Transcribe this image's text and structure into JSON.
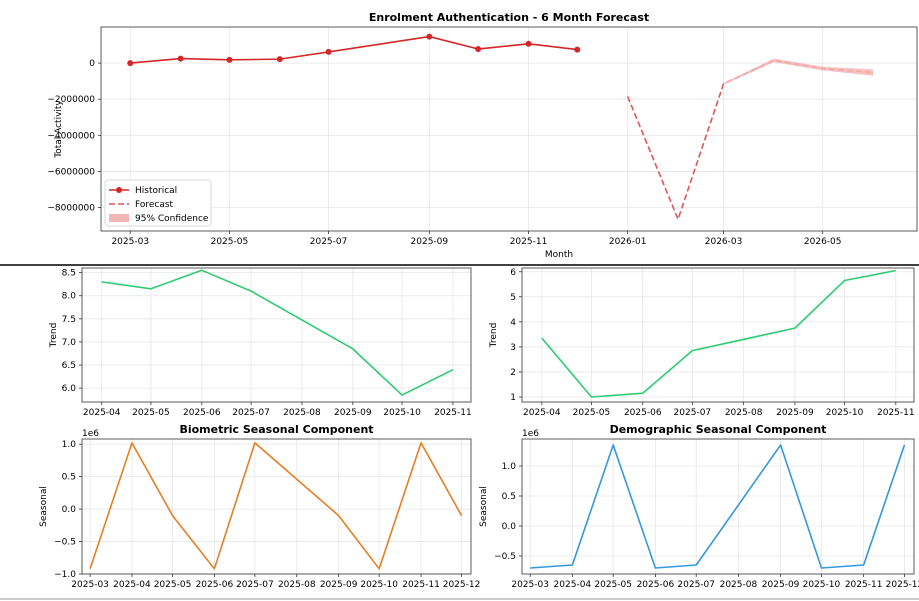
{
  "chart_data": [
    {
      "id": "forecast",
      "type": "line",
      "title": "Enrolment Authentication - 6 Month Forecast",
      "xlabel": "Month",
      "ylabel": "Total Activity",
      "xlim": [
        "2025-02-11",
        "2026-06-28"
      ],
      "ylim": [
        -9300000,
        2000000
      ],
      "grid": true,
      "legend_placement": "lower-left",
      "x_ticks": [
        "2025-03",
        "2025-05",
        "2025-07",
        "2025-09",
        "2025-11",
        "2026-01",
        "2026-03",
        "2026-05"
      ],
      "y_ticks": [
        0,
        -2000000,
        -4000000,
        -6000000,
        -8000000
      ],
      "y_tick_labels": [
        "0",
        "−2000000",
        "−4000000",
        "−6000000",
        "−8000000"
      ],
      "series": [
        {
          "name": "Historical",
          "color": "#d62728",
          "style": "solid-markers",
          "x": [
            "2025-03-01",
            "2025-04-01",
            "2025-05-01",
            "2025-06-01",
            "2025-07-01",
            "2025-09-01",
            "2025-10-01",
            "2025-11-01",
            "2025-12-01"
          ],
          "y": [
            0,
            250000,
            180000,
            220000,
            620000,
            1470000,
            780000,
            1070000,
            750000
          ]
        },
        {
          "name": "Forecast",
          "color": "#d62728",
          "style": "dashed",
          "x": [
            "2026-01-01",
            "2026-02-01",
            "2026-03-01",
            "2026-04-01",
            "2026-05-01",
            "2026-06-01"
          ],
          "y": [
            -1850000,
            -8650000,
            -1150000,
            150000,
            -300000,
            -520000
          ]
        },
        {
          "name": "95% Confidence",
          "color": "#f4b6b7",
          "style": "band",
          "x": [
            "2026-03-01",
            "2026-04-01",
            "2026-05-01",
            "2026-06-01"
          ],
          "lower": [
            -1200000,
            50000,
            -400000,
            -700000
          ],
          "upper": [
            -1100000,
            250000,
            -200000,
            -350000
          ]
        }
      ]
    },
    {
      "id": "trend-left",
      "type": "line",
      "title": "",
      "xlabel": "",
      "ylabel": "Trend",
      "xlim": [
        "2025-03-20",
        "2025-11-12"
      ],
      "ylim": [
        5.7,
        8.6
      ],
      "grid": true,
      "x_ticks": [
        "2025-04",
        "2025-05",
        "2025-06",
        "2025-07",
        "2025-08",
        "2025-09",
        "2025-10",
        "2025-11"
      ],
      "y_ticks": [
        6.0,
        6.5,
        7.0,
        7.5,
        8.0,
        8.5
      ],
      "y_tick_labels": [
        "6.0",
        "6.5",
        "7.0",
        "7.5",
        "8.0",
        "8.5"
      ],
      "series": [
        {
          "color": "#2ecc71",
          "x": [
            "2025-04-01",
            "2025-05-01",
            "2025-06-01",
            "2025-07-01",
            "2025-09-01",
            "2025-10-01",
            "2025-11-01"
          ],
          "y": [
            8.3,
            8.15,
            8.55,
            8.1,
            6.85,
            5.85,
            6.4
          ]
        }
      ]
    },
    {
      "id": "trend-right",
      "type": "line",
      "title": "",
      "xlabel": "",
      "ylabel": "Trend",
      "xlim": [
        "2025-03-20",
        "2025-11-12"
      ],
      "ylim": [
        0.8,
        6.15
      ],
      "grid": true,
      "x_ticks": [
        "2025-04",
        "2025-05",
        "2025-06",
        "2025-07",
        "2025-08",
        "2025-09",
        "2025-10",
        "2025-11"
      ],
      "y_ticks": [
        1,
        2,
        3,
        4,
        5,
        6
      ],
      "y_tick_labels": [
        "1",
        "2",
        "3",
        "4",
        "5",
        "6"
      ],
      "series": [
        {
          "color": "#2ecc71",
          "x": [
            "2025-04-01",
            "2025-05-01",
            "2025-06-01",
            "2025-07-01",
            "2025-09-01",
            "2025-10-01",
            "2025-11-01"
          ],
          "y": [
            3.35,
            1.0,
            1.15,
            2.85,
            3.75,
            5.65,
            6.05
          ]
        }
      ]
    },
    {
      "id": "seasonal-biometric",
      "type": "line",
      "title": "Biometric Seasonal Component",
      "xlabel": "",
      "ylabel": "Seasonal",
      "offset_label": "1e6",
      "xlim": [
        "2025-02-23",
        "2025-12-08"
      ],
      "ylim": [
        -1.0,
        1.08
      ],
      "grid": true,
      "x_ticks": [
        "2025-03",
        "2025-04",
        "2025-05",
        "2025-06",
        "2025-07",
        "2025-08",
        "2025-09",
        "2025-10",
        "2025-11",
        "2025-12"
      ],
      "y_ticks": [
        -1.0,
        -0.5,
        0.0,
        0.5,
        1.0
      ],
      "y_tick_labels": [
        "−1.0",
        "−0.5",
        "0.0",
        "0.5",
        "1.0"
      ],
      "series": [
        {
          "color": "#e67e22",
          "x": [
            "2025-03-01",
            "2025-04-01",
            "2025-05-01",
            "2025-06-01",
            "2025-07-01",
            "2025-09-01",
            "2025-10-01",
            "2025-11-01",
            "2025-12-01"
          ],
          "y": [
            -0.92,
            1.02,
            -0.1,
            -0.92,
            1.02,
            -0.1,
            -0.92,
            1.02,
            -0.1
          ]
        }
      ]
    },
    {
      "id": "seasonal-demographic",
      "type": "line",
      "title": "Demographic Seasonal Component",
      "xlabel": "",
      "ylabel": "Seasonal",
      "offset_label": "1e6",
      "xlim": [
        "2025-02-23",
        "2025-12-08"
      ],
      "ylim": [
        -0.8,
        1.45
      ],
      "grid": true,
      "x_ticks": [
        "2025-03",
        "2025-04",
        "2025-05",
        "2025-06",
        "2025-07",
        "2025-08",
        "2025-09",
        "2025-10",
        "2025-11",
        "2025-12"
      ],
      "y_ticks": [
        -0.5,
        0.0,
        0.5,
        1.0
      ],
      "y_tick_labels": [
        "−0.5",
        "0.0",
        "0.5",
        "1.0"
      ],
      "series": [
        {
          "color": "#3498db",
          "x": [
            "2025-03-01",
            "2025-04-01",
            "2025-05-01",
            "2025-06-01",
            "2025-07-01",
            "2025-09-01",
            "2025-10-01",
            "2025-11-01",
            "2025-12-01"
          ],
          "y": [
            -0.7,
            -0.65,
            1.35,
            -0.7,
            -0.65,
            1.35,
            -0.7,
            -0.65,
            1.35
          ]
        }
      ]
    }
  ]
}
